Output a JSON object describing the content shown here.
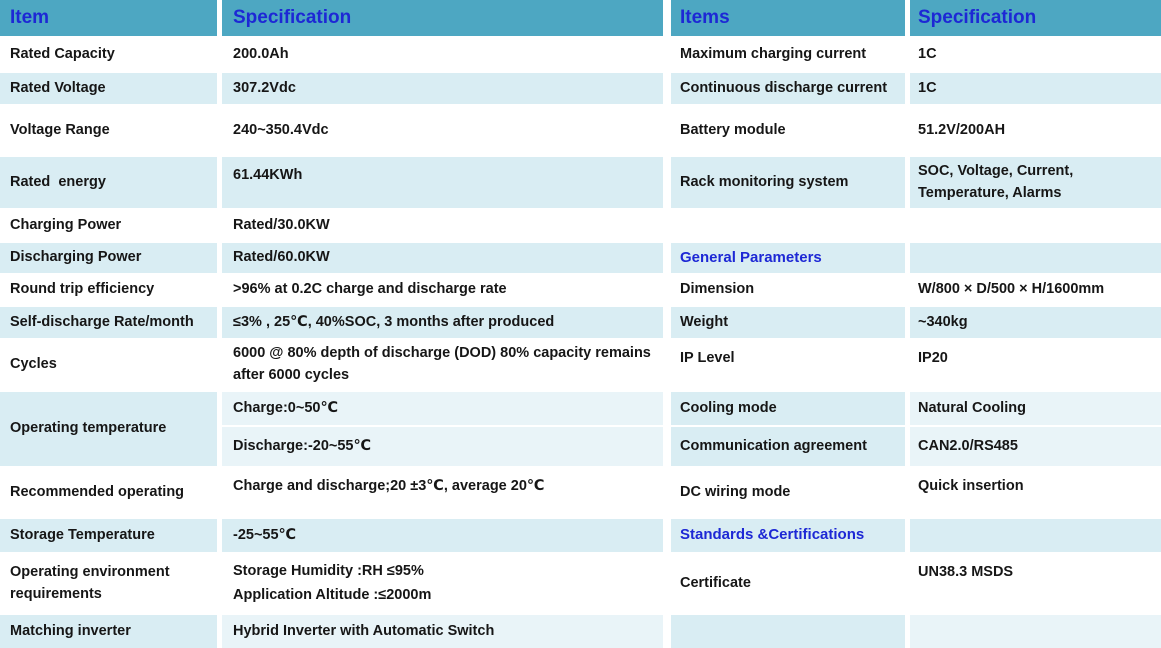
{
  "colors": {
    "header_bg": "#4DA7C2",
    "header_text": "#1D28D5",
    "row_alt": "#D9EDF3",
    "row_sub": "#E9F4F8",
    "text_color": "#161616"
  },
  "header": {
    "left_item": "Item",
    "left_spec": "Specification",
    "right_item": "Items",
    "right_spec": "Specification"
  },
  "left_table": {
    "rows": [
      {
        "item": "Rated Capacity",
        "spec": "200.0Ah"
      },
      {
        "item": "Rated Voltage",
        "spec": "307.2Vdc"
      },
      {
        "item": "Voltage Range",
        "spec": "240~350.4Vdc"
      },
      {
        "item": "Rated  energy",
        "spec": "61.44KWh"
      },
      {
        "item": "Charging Power",
        "spec": "Rated/30.0KW"
      },
      {
        "item": "Discharging Power",
        "spec": "Rated/60.0KW"
      },
      {
        "item": "Round trip efficiency",
        "spec": ">96% at 0.2C charge and discharge rate"
      },
      {
        "item": "Self-discharge Rate/month",
        "spec": "≤3% , 25℃, 40%SOC, 3 months after produced"
      },
      {
        "item": "Cycles",
        "spec": "6000 @ 80% depth of discharge (DOD) 80% capacity remains after 6000 cycles"
      },
      {
        "item": "Operating temperature",
        "spec_charge": "Charge:0~50℃",
        "spec_discharge": "Discharge:-20~55℃"
      },
      {
        "item": "Recommended operating",
        "spec": "Charge and discharge;20 ±3℃, average 20℃"
      },
      {
        "item": "Storage Temperature",
        "spec": "-25~55℃"
      },
      {
        "item": "Operating environment requirements",
        "spec_line1": "Storage Humidity :RH ≤95%",
        "spec_line2": "Application Altitude :≤2000m"
      },
      {
        "item": "Matching inverter",
        "spec": "Hybrid Inverter with Automatic Switch"
      }
    ]
  },
  "right_table": {
    "rows": [
      {
        "item": "Maximum charging current",
        "spec": "1C"
      },
      {
        "item": "Continuous discharge current",
        "spec": "1C"
      },
      {
        "item": "Battery module",
        "spec": "51.2V/200AH"
      },
      {
        "item": "Rack monitoring system",
        "spec": "SOC, Voltage, Current, Temperature, Alarms"
      },
      {
        "item": "",
        "spec": ""
      },
      {
        "item": "General Parameters",
        "spec": ""
      },
      {
        "item": "Dimension",
        "spec": "W/800 × D/500 × H/1600mm"
      },
      {
        "item": "Weight",
        "spec": "~340kg"
      },
      {
        "item": "IP Level",
        "spec": "IP20"
      },
      {
        "item": "Cooling mode",
        "spec": "Natural Cooling"
      },
      {
        "item": "Communication agreement",
        "spec": "CAN2.0/RS485"
      },
      {
        "item": "DC wiring mode",
        "spec": "Quick insertion"
      },
      {
        "item": "Standards &Certifications",
        "spec": ""
      },
      {
        "item": "Certificate",
        "spec": "UN38.3 MSDS"
      },
      {
        "item": "",
        "spec": ""
      }
    ]
  }
}
